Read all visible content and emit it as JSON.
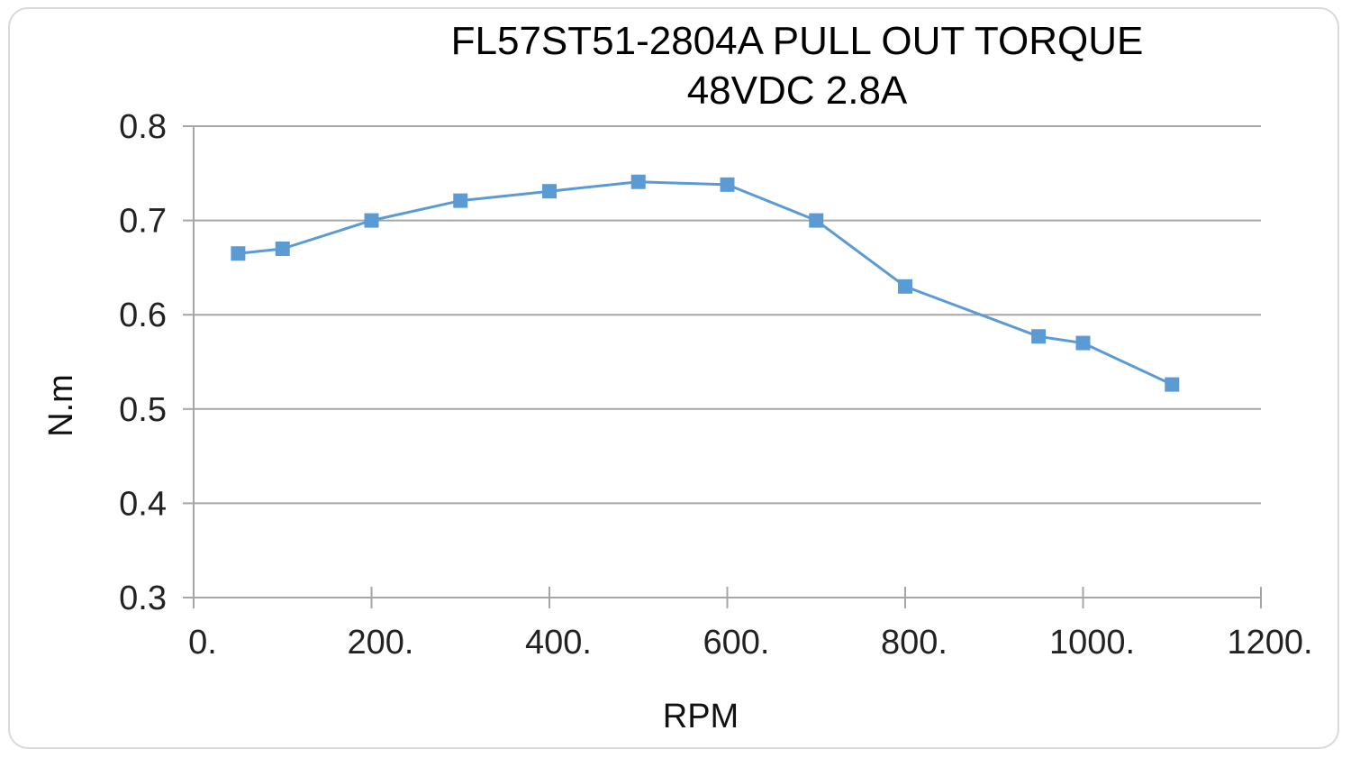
{
  "chart_data": {
    "type": "line",
    "title": "FL57ST51-2804A PULL  OUT  TORQUE",
    "subtitle": "48VDC 2.8A",
    "xlabel": "RPM",
    "ylabel": "N.m",
    "xlim": [
      0,
      1200
    ],
    "ylim": [
      0.3,
      0.8
    ],
    "x_ticks": [
      0,
      200,
      400,
      600,
      800,
      1000,
      1200
    ],
    "x_tick_labels": [
      "0.",
      "200.",
      "400.",
      "600.",
      "800.",
      "1000.",
      "1200."
    ],
    "y_ticks": [
      0.3,
      0.4,
      0.5,
      0.6,
      0.7,
      0.8
    ],
    "y_tick_labels": [
      "0.3",
      "0.4",
      "0.5",
      "0.6",
      "0.7",
      "0.8"
    ],
    "grid": "horizontal",
    "legend": "none",
    "series": [
      {
        "color": "#5b9bd5",
        "marker": "square",
        "points": [
          {
            "x": 50,
            "y": 0.665
          },
          {
            "x": 100,
            "y": 0.67
          },
          {
            "x": 200,
            "y": 0.7
          },
          {
            "x": 300,
            "y": 0.721
          },
          {
            "x": 400,
            "y": 0.731
          },
          {
            "x": 500,
            "y": 0.741
          },
          {
            "x": 600,
            "y": 0.738
          },
          {
            "x": 700,
            "y": 0.7
          },
          {
            "x": 800,
            "y": 0.63
          },
          {
            "x": 950,
            "y": 0.577
          },
          {
            "x": 1000,
            "y": 0.57
          },
          {
            "x": 1100,
            "y": 0.526
          }
        ]
      }
    ]
  }
}
